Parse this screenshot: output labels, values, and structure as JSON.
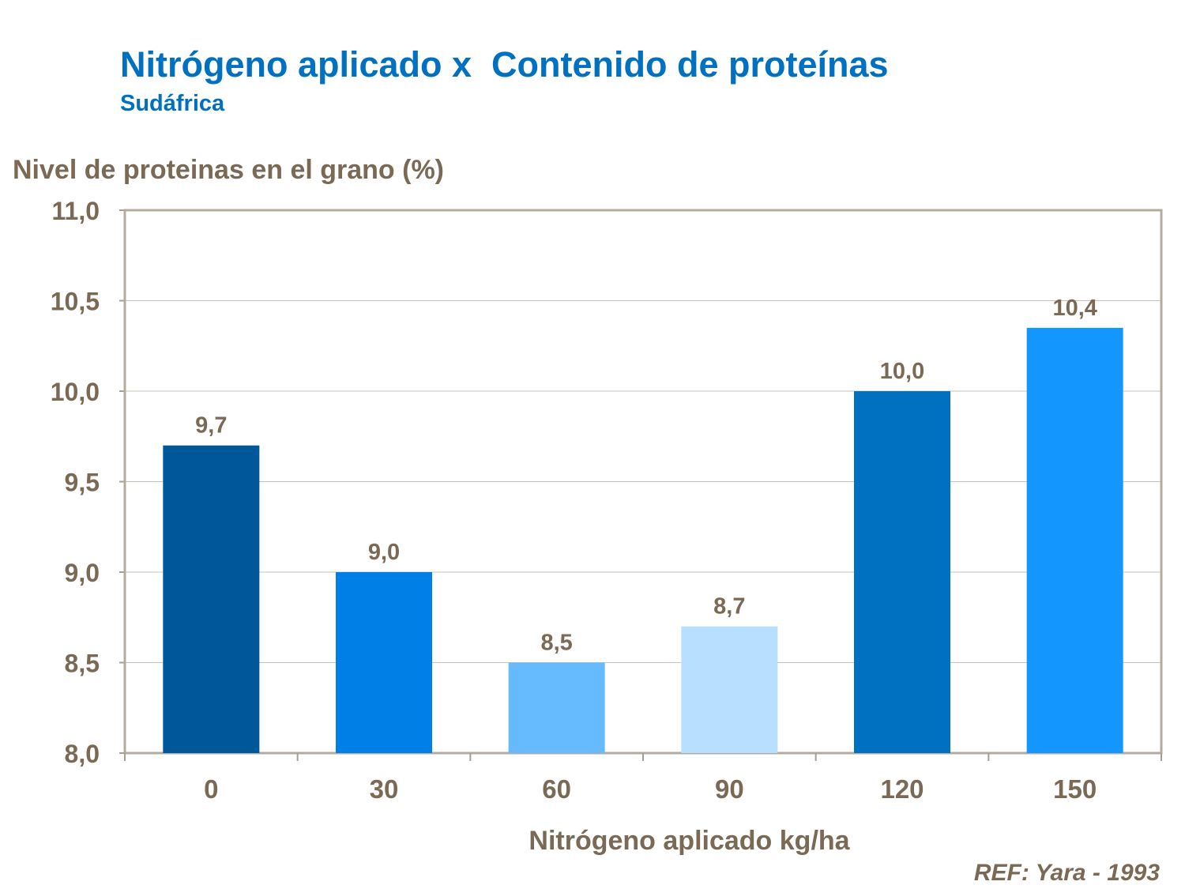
{
  "chart_data": {
    "type": "bar",
    "title": "Nitrógeno aplicado x  Contenido de proteínas",
    "subtitle": "Sudáfrica",
    "ylabel": "Nivel de proteinas en el grano (%)",
    "xlabel": "Nitrógeno aplicado kg/ha",
    "categories": [
      "0",
      "30",
      "60",
      "90",
      "120",
      "150"
    ],
    "values": [
      9.7,
      9.0,
      8.5,
      8.7,
      10.0,
      10.35
    ],
    "data_labels": [
      "9,7",
      "9,0",
      "8,5",
      "8,7",
      "10,0",
      "10,4"
    ],
    "bar_colors": [
      "#00589b",
      "#0080e6",
      "#66bbff",
      "#b8dfff",
      "#0070c0",
      "#1496ff"
    ],
    "ylim": [
      8.0,
      11.0
    ],
    "yticks": [
      8.0,
      8.5,
      9.0,
      9.5,
      10.0,
      10.5,
      11.0
    ],
    "ytick_labels": [
      "8,0",
      "8,5",
      "9,0",
      "9,5",
      "10,0",
      "10,5",
      "11,0"
    ],
    "grid": true,
    "legend": "none",
    "text_color": "#7a6a55",
    "title_color": "#0070c0"
  },
  "reference": "REF: Yara - 1993"
}
